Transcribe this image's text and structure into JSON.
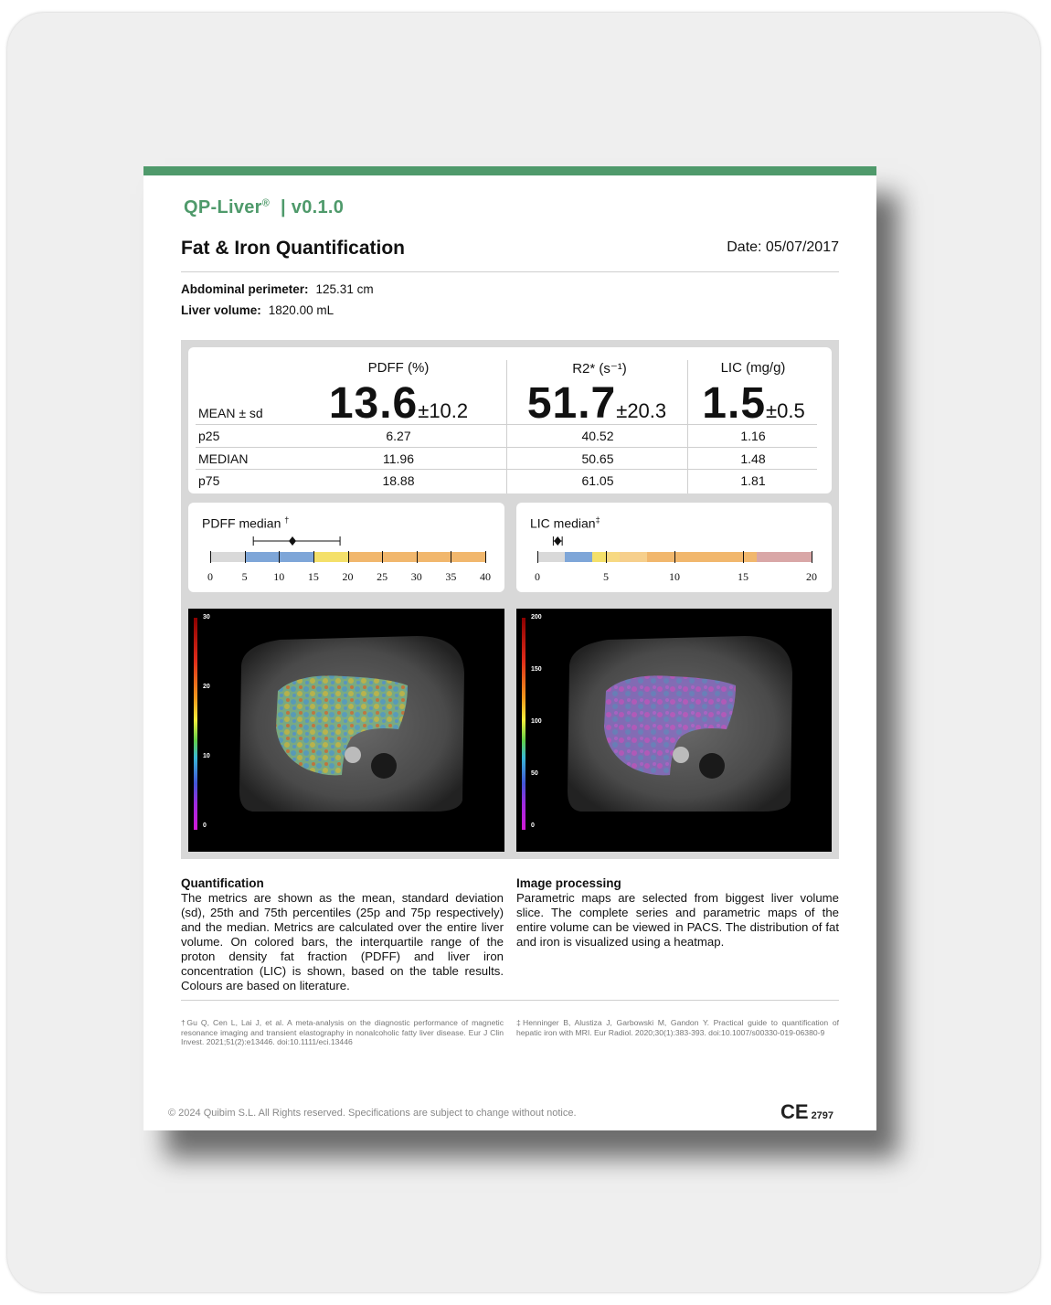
{
  "header": {
    "brand": "QP-Liver",
    "brand_mark": "®",
    "version": "| v0.1.0",
    "title": "Fat & Iron Quantification",
    "date": "Date: 05/07/2017"
  },
  "patient": {
    "perimeter_label": "Abdominal perimeter:",
    "perimeter_value": "125.31  cm",
    "volume_label": "Liver volume:",
    "volume_value": "1820.00  mL"
  },
  "stats": {
    "columns": [
      "PDFF (%)",
      "R2* (s⁻¹)",
      "LIC (mg/g)"
    ],
    "mean_label": "MEAN ± sd",
    "means": [
      {
        "value": "13.6",
        "sd": "±10.2"
      },
      {
        "value": "51.7",
        "sd": "±20.3"
      },
      {
        "value": "1.5",
        "sd": "±0.5"
      }
    ],
    "rows": [
      {
        "label": "p25",
        "values": [
          "6.27",
          "40.52",
          "1.16"
        ]
      },
      {
        "label": "MEDIAN",
        "values": [
          "11.96",
          "50.65",
          "1.48"
        ]
      },
      {
        "label": "p75",
        "values": [
          "18.88",
          "61.05",
          "1.81"
        ]
      }
    ]
  },
  "pdff_bar": {
    "label": "PDFF median",
    "footnote": "†",
    "ticks": [
      "0",
      "5",
      "10",
      "15",
      "20",
      "25",
      "30",
      "35",
      "40"
    ],
    "range": [
      0,
      40
    ],
    "segments": [
      {
        "from": 0,
        "to": 5,
        "color": "#d9d9d9"
      },
      {
        "from": 5,
        "to": 15,
        "color": "#7ea6d8"
      },
      {
        "from": 15,
        "to": 20,
        "color": "#f4e06a"
      },
      {
        "from": 20,
        "to": 40,
        "color": "#f1b76d"
      }
    ],
    "whisker": [
      6.27,
      18.88
    ],
    "median": 11.96
  },
  "lic_bar": {
    "label": "LIC median",
    "footnote": "‡",
    "ticks": [
      "0",
      "5",
      "10",
      "15",
      "20"
    ],
    "range": [
      0,
      20
    ],
    "segments": [
      {
        "from": 0,
        "to": 2,
        "color": "#d9d9d9"
      },
      {
        "from": 2,
        "to": 4,
        "color": "#7ea6d8"
      },
      {
        "from": 4,
        "to": 5,
        "color": "#f4e06a"
      },
      {
        "from": 5,
        "to": 6,
        "color": "#f7d982"
      },
      {
        "from": 6,
        "to": 8,
        "color": "#f6cf8c"
      },
      {
        "from": 8,
        "to": 16,
        "color": "#f1b76d"
      },
      {
        "from": 16,
        "to": 20,
        "color": "#d9a7a7"
      }
    ],
    "whisker": [
      1.16,
      1.81
    ],
    "median": 1.48
  },
  "maps": {
    "pdff_ticks": [
      "30",
      "20",
      "10",
      "0"
    ],
    "r2_ticks": [
      "200",
      "150",
      "100",
      "50",
      "0"
    ]
  },
  "text": {
    "quant_title": "Quantification",
    "quant_body": "The metrics are shown as the mean, standard deviation (sd), 25th and 75th percentiles (25p and 75p respectively) and the median. Metrics are calculated over the entire liver volume.  On colored bars, the interquartile range of the proton density fat fraction (PDFF) and liver iron concentration (LIC) is shown, based on the table results. Colours are based on literature.",
    "proc_title": "Image processing",
    "proc_body": "Parametric maps are selected from biggest liver volume slice. The complete series and parametric maps of the entire volume can be viewed in PACS. The distribution of fat and iron is visualized using a heatmap."
  },
  "refs": {
    "ref1": "†Gu Q, Cen L, Lai J, et al. A meta-analysis on the diagnostic performance of magnetic resonance imaging and transient elastography in nonalcoholic fatty liver disease. Eur J Clin Invest. 2021;51(2):e13446. doi:10.1111/eci.13446",
    "ref2": "‡Henninger B, Alustiza J, Garbowski M, Gandon Y. Practical guide to quantification of hepatic iron with MRI. Eur Radiol.  2020;30(1):383-393. doi:10.1007/s00330-019-06380-9"
  },
  "footer": {
    "copyright": "© 2024 Quibim S.L. All Rights reserved. Specifications are subject to change without notice.",
    "ce_mark": "CE",
    "ce_number": "2797"
  }
}
